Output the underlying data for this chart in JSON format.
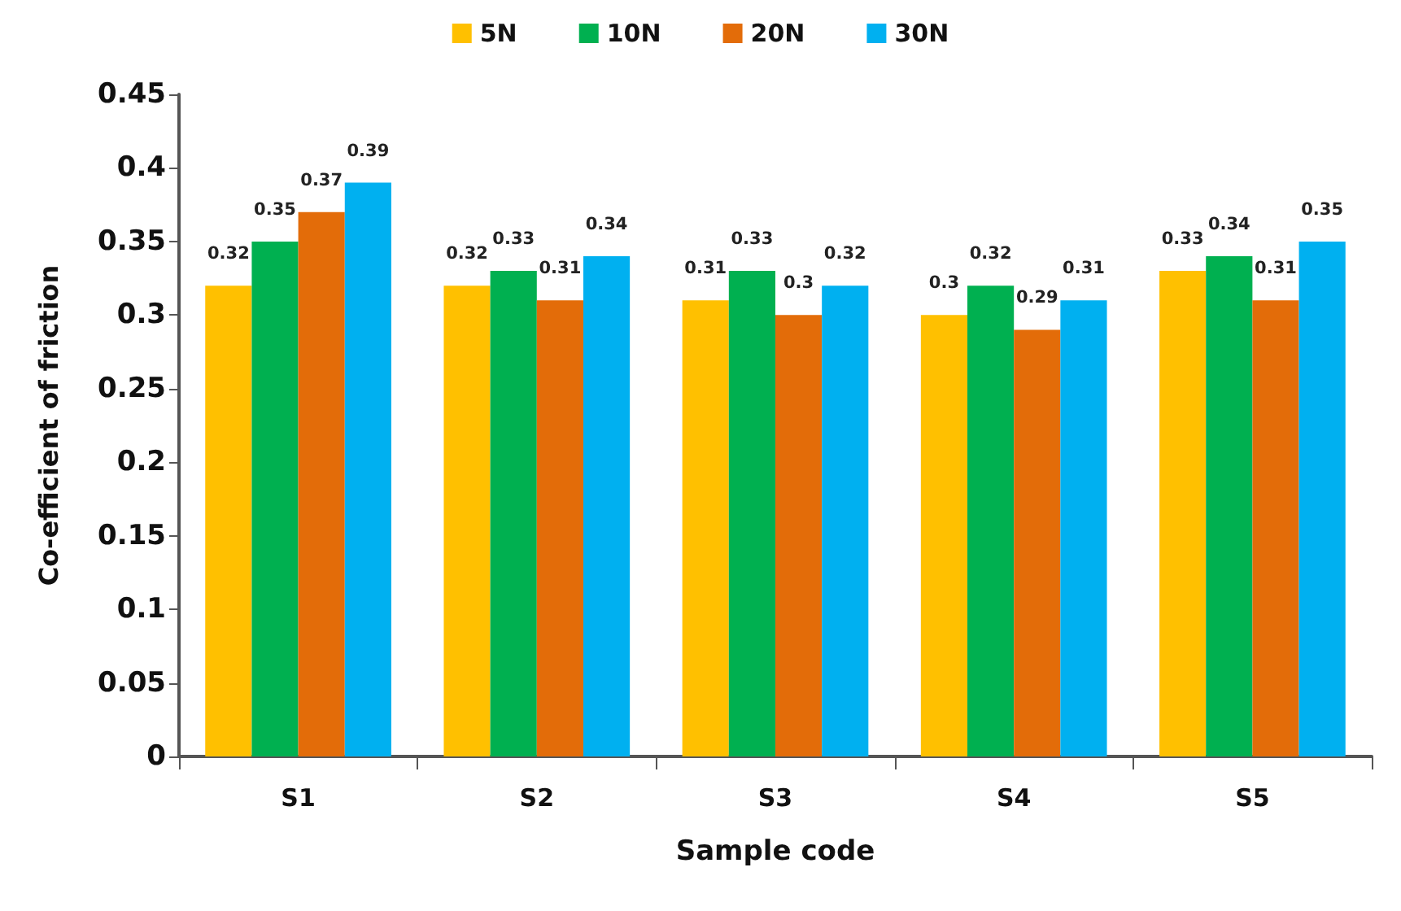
{
  "chart_data": {
    "type": "bar",
    "xlabel": "Sample code",
    "ylabel": "Co-efficient of friction",
    "categories": [
      "S1",
      "S2",
      "S3",
      "S4",
      "S5"
    ],
    "series": [
      {
        "name": "5N",
        "color": "#ffc000",
        "values": [
          0.32,
          0.32,
          0.31,
          0.3,
          0.33
        ]
      },
      {
        "name": "10N",
        "color": "#00b050",
        "values": [
          0.35,
          0.33,
          0.33,
          0.32,
          0.34
        ]
      },
      {
        "name": "20N",
        "color": "#e36c09",
        "values": [
          0.37,
          0.31,
          0.3,
          0.29,
          0.31
        ]
      },
      {
        "name": "30N",
        "color": "#00b0f0",
        "values": [
          0.39,
          0.34,
          0.32,
          0.31,
          0.35
        ]
      }
    ],
    "ylim": [
      0,
      0.45
    ],
    "yticks": [
      0,
      0.05,
      0.1,
      0.15,
      0.2,
      0.25,
      0.3,
      0.35,
      0.4,
      0.45
    ],
    "grid": false,
    "legend": "top",
    "data_labels": true
  }
}
